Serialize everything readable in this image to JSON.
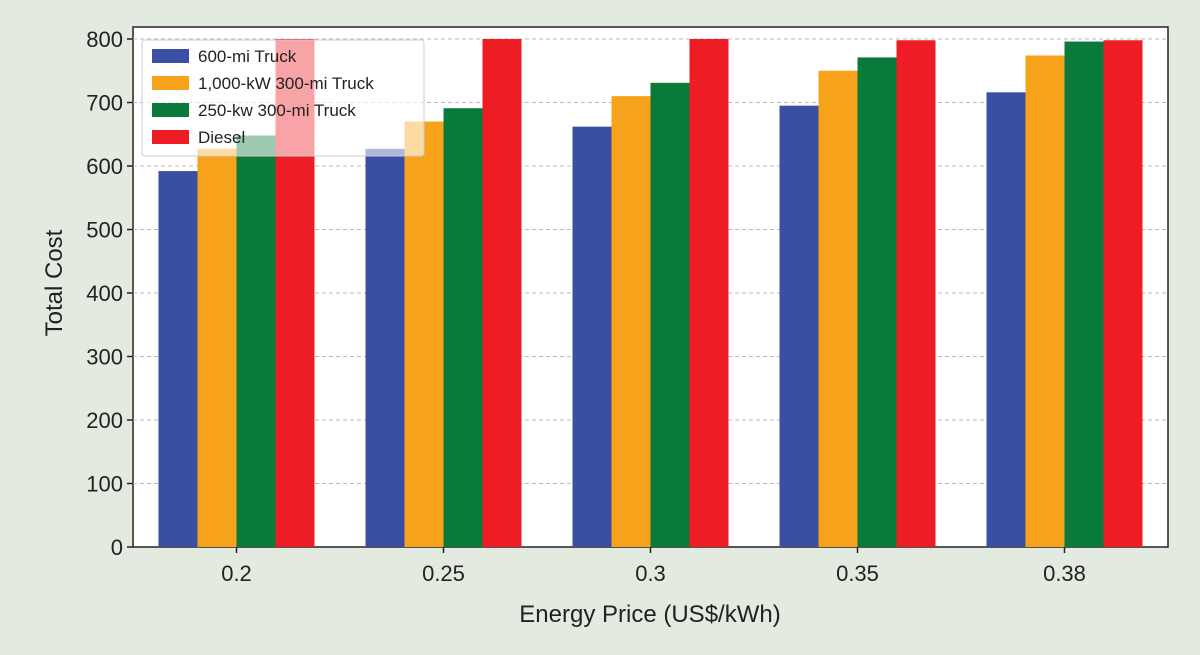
{
  "chart_data": {
    "type": "bar",
    "title": "",
    "xlabel": "Energy Price (US$/kWh)",
    "ylabel": "Total Cost",
    "ylim": [
      0,
      800
    ],
    "yticks": [
      0,
      100,
      200,
      300,
      400,
      500,
      600,
      700,
      800
    ],
    "grid": "horizontal dashed",
    "legend_position": "top-left",
    "categories": [
      "0.2",
      "0.25",
      "0.3",
      "0.35",
      "0.38"
    ],
    "series": [
      {
        "name": "600-mi Truck",
        "color": "#3a4ea3",
        "values": [
          592,
          627,
          662,
          695,
          716
        ]
      },
      {
        "name": "1,000-kW 300-mi Truck",
        "color": "#f7a21b",
        "values": [
          627,
          670,
          710,
          750,
          774
        ]
      },
      {
        "name": "250-kw 300-mi Truck",
        "color": "#0a7a3a",
        "values": [
          648,
          691,
          731,
          771,
          796
        ]
      },
      {
        "name": "Diesel",
        "color": "#ee1c25",
        "values": [
          800,
          800,
          800,
          798,
          798
        ]
      }
    ]
  }
}
